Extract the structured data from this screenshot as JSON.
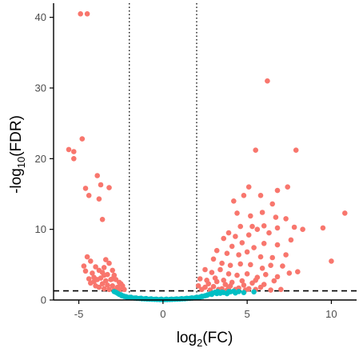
{
  "chart_data": {
    "type": "scatter",
    "title": "",
    "xlabel": {
      "base": "log",
      "sub": "2",
      "rest": "(FC)"
    },
    "ylabel": {
      "base": "-log",
      "sub": "10",
      "rest": "(FDR)"
    },
    "xlim": [
      -6.5,
      11.5
    ],
    "ylim": [
      0,
      42
    ],
    "x_ticks": [
      -5,
      0,
      5,
      10
    ],
    "y_ticks": [
      0,
      10,
      20,
      30,
      40
    ],
    "x_tick_labels": [
      "-5",
      "0",
      "5",
      "10"
    ],
    "y_tick_labels": [
      "0",
      "10",
      "20",
      "30",
      "40"
    ],
    "grid": false,
    "legend": "none",
    "reference_lines": {
      "vertical": [
        -2,
        2
      ],
      "vertical_style": "dotted",
      "horizontal": [
        1.3
      ],
      "horizontal_style": "dashed"
    },
    "colors": {
      "significant": "#F8766D",
      "not_significant": "#00BFC4",
      "axis": "#000000",
      "tick_text": "#4d4d4d"
    },
    "series": [
      {
        "color_key": "significant",
        "points": [
          [
            -4.9,
            40.5
          ],
          [
            -4.5,
            40.5
          ],
          [
            -5.6,
            21.3
          ],
          [
            -5.3,
            20.0
          ],
          [
            -5.3,
            21.0
          ],
          [
            -4.8,
            22.8
          ],
          [
            -4.6,
            15.8
          ],
          [
            -4.4,
            14.8
          ],
          [
            -3.9,
            17.6
          ],
          [
            -3.7,
            16.3
          ],
          [
            -3.2,
            15.9
          ],
          [
            -3.8,
            14.3
          ],
          [
            -3.6,
            11.4
          ],
          [
            -4.5,
            6.1
          ],
          [
            -4.3,
            5.5
          ],
          [
            -4.7,
            4.8
          ],
          [
            -4.0,
            4.7
          ],
          [
            -3.5,
            4.6
          ],
          [
            -3.4,
            5.7
          ],
          [
            -3.2,
            5.2
          ],
          [
            -3.0,
            4.2
          ],
          [
            -4.6,
            4.1
          ],
          [
            -4.2,
            3.8
          ],
          [
            -3.8,
            4.2
          ],
          [
            -3.6,
            3.9
          ],
          [
            -3.5,
            3.5
          ],
          [
            -3.3,
            3.6
          ],
          [
            -2.9,
            3.5
          ],
          [
            -4.4,
            3.0
          ],
          [
            -4.1,
            3.2
          ],
          [
            -3.9,
            2.9
          ],
          [
            -3.7,
            3.1
          ],
          [
            -3.4,
            2.7
          ],
          [
            -3.1,
            2.9
          ],
          [
            -2.8,
            2.9
          ],
          [
            -2.5,
            2.3
          ],
          [
            -4.3,
            2.4
          ],
          [
            -4.0,
            2.0
          ],
          [
            -3.6,
            2.3
          ],
          [
            -3.3,
            2.1
          ],
          [
            -3.0,
            2.0
          ],
          [
            -2.7,
            1.8
          ],
          [
            -2.4,
            1.7
          ],
          [
            -3.5,
            1.6
          ],
          [
            -3.2,
            1.5
          ],
          [
            -2.9,
            1.4
          ],
          [
            -2.6,
            1.4
          ],
          [
            -2.3,
            1.5
          ],
          [
            -3.8,
            1.8
          ],
          [
            -4.1,
            2.6
          ],
          [
            -3.0,
            3.0
          ],
          [
            -2.6,
            2.5
          ],
          [
            -2.4,
            2.0
          ],
          [
            6.2,
            31.0
          ],
          [
            5.5,
            21.2
          ],
          [
            7.9,
            21.2
          ],
          [
            5.1,
            16.0
          ],
          [
            6.8,
            15.5
          ],
          [
            7.4,
            16.0
          ],
          [
            4.2,
            14.0
          ],
          [
            4.8,
            14.8
          ],
          [
            5.8,
            14.8
          ],
          [
            6.5,
            13.6
          ],
          [
            4.4,
            12.3
          ],
          [
            5.2,
            11.9
          ],
          [
            5.9,
            12.4
          ],
          [
            6.7,
            11.7
          ],
          [
            4.6,
            10.4
          ],
          [
            5.3,
            10.4
          ],
          [
            6.0,
            10.5
          ],
          [
            7.3,
            11.5
          ],
          [
            3.9,
            9.5
          ],
          [
            4.3,
            9.0
          ],
          [
            5.1,
            9.2
          ],
          [
            5.6,
            10.0
          ],
          [
            6.3,
            9.5
          ],
          [
            6.8,
            10.2
          ],
          [
            7.8,
            10.3
          ],
          [
            8.3,
            10.0
          ],
          [
            9.5,
            10.2
          ],
          [
            10.8,
            12.3
          ],
          [
            3.6,
            8.7
          ],
          [
            4.1,
            7.6
          ],
          [
            4.7,
            8.1
          ],
          [
            5.4,
            7.4
          ],
          [
            6.0,
            8.0
          ],
          [
            6.8,
            7.8
          ],
          [
            7.6,
            8.5
          ],
          [
            3.2,
            7.0
          ],
          [
            3.8,
            6.6
          ],
          [
            4.5,
            6.4
          ],
          [
            5.0,
            6.8
          ],
          [
            5.8,
            6.1
          ],
          [
            6.5,
            6.0
          ],
          [
            7.3,
            6.4
          ],
          [
            10.0,
            5.5
          ],
          [
            3.0,
            5.8
          ],
          [
            3.5,
            5.2
          ],
          [
            4.0,
            4.9
          ],
          [
            4.6,
            5.1
          ],
          [
            5.2,
            5.0
          ],
          [
            5.9,
            4.5
          ],
          [
            6.4,
            4.9
          ],
          [
            7.1,
            4.8
          ],
          [
            8.0,
            4.0
          ],
          [
            2.5,
            4.3
          ],
          [
            2.9,
            3.9
          ],
          [
            3.4,
            4.3
          ],
          [
            3.9,
            3.7
          ],
          [
            4.4,
            3.5
          ],
          [
            5.0,
            3.7
          ],
          [
            5.6,
            3.2
          ],
          [
            6.1,
            3.6
          ],
          [
            6.8,
            3.3
          ],
          [
            2.2,
            3.0
          ],
          [
            2.6,
            2.8
          ],
          [
            3.1,
            3.1
          ],
          [
            3.6,
            2.8
          ],
          [
            4.1,
            2.5
          ],
          [
            4.7,
            2.7
          ],
          [
            5.3,
            2.4
          ],
          [
            6.0,
            2.2
          ],
          [
            2.1,
            2.0
          ],
          [
            2.5,
            1.8
          ],
          [
            3.0,
            1.9
          ],
          [
            3.5,
            1.6
          ],
          [
            4.0,
            2.0
          ],
          [
            4.5,
            1.7
          ],
          [
            5.1,
            1.6
          ],
          [
            5.8,
            1.8
          ],
          [
            7.0,
            1.5
          ],
          [
            2.3,
            1.5
          ],
          [
            2.8,
            1.4
          ],
          [
            3.3,
            1.5
          ],
          [
            3.8,
            1.4
          ],
          [
            4.3,
            1.5
          ],
          [
            4.9,
            1.4
          ],
          [
            5.5,
            1.5
          ],
          [
            6.4,
            1.4
          ],
          [
            2.7,
            2.3
          ],
          [
            3.2,
            2.6
          ],
          [
            3.7,
            2.2
          ],
          [
            4.8,
            2.1
          ],
          [
            5.5,
            2.8
          ],
          [
            6.6,
            2.7
          ],
          [
            7.5,
            3.8
          ],
          [
            3.9,
            1.7
          ]
        ]
      },
      {
        "color_key": "not_significant",
        "points": [
          [
            -2.8,
            1.1
          ],
          [
            -2.6,
            0.8
          ],
          [
            -2.45,
            0.6
          ],
          [
            -2.3,
            0.5
          ],
          [
            -2.15,
            0.42
          ],
          [
            -2.0,
            0.36
          ],
          [
            -1.85,
            0.31
          ],
          [
            -1.7,
            0.27
          ],
          [
            -1.55,
            0.24
          ],
          [
            -1.4,
            0.21
          ],
          [
            -1.25,
            0.18
          ],
          [
            -1.1,
            0.16
          ],
          [
            -0.95,
            0.14
          ],
          [
            -0.8,
            0.12
          ],
          [
            -0.65,
            0.1
          ],
          [
            -0.5,
            0.09
          ],
          [
            -0.35,
            0.08
          ],
          [
            -0.2,
            0.07
          ],
          [
            -0.05,
            0.06
          ],
          [
            0.1,
            0.06
          ],
          [
            0.25,
            0.07
          ],
          [
            0.4,
            0.08
          ],
          [
            0.55,
            0.09
          ],
          [
            0.7,
            0.1
          ],
          [
            0.85,
            0.12
          ],
          [
            1.0,
            0.14
          ],
          [
            1.15,
            0.16
          ],
          [
            1.3,
            0.18
          ],
          [
            1.45,
            0.21
          ],
          [
            1.6,
            0.24
          ],
          [
            1.75,
            0.27
          ],
          [
            1.9,
            0.31
          ],
          [
            2.05,
            0.36
          ],
          [
            2.2,
            0.42
          ],
          [
            2.35,
            0.5
          ],
          [
            2.5,
            0.6
          ],
          [
            2.65,
            0.72
          ],
          [
            2.8,
            0.85
          ],
          [
            2.95,
            0.98
          ],
          [
            3.1,
            1.1
          ],
          [
            3.25,
            1.2
          ],
          [
            3.4,
            0.95
          ],
          [
            3.6,
            1.05
          ],
          [
            3.8,
            0.9
          ],
          [
            4.0,
            1.15
          ],
          [
            4.3,
            1.0
          ],
          [
            4.5,
            1.2
          ],
          [
            4.8,
            1.05
          ],
          [
            5.4,
            1.15
          ],
          [
            -2.9,
            1.2
          ],
          [
            -2.7,
            0.95
          ],
          [
            -2.5,
            0.75
          ],
          [
            -2.35,
            0.58
          ],
          [
            -2.2,
            0.48
          ],
          [
            -1.9,
            0.38
          ],
          [
            -1.6,
            0.3
          ],
          [
            -1.3,
            0.25
          ],
          [
            -1.0,
            0.2
          ],
          [
            -0.7,
            0.16
          ],
          [
            -0.4,
            0.13
          ],
          [
            -0.1,
            0.12
          ],
          [
            0.2,
            0.12
          ],
          [
            0.5,
            0.13
          ],
          [
            0.8,
            0.15
          ],
          [
            1.1,
            0.19
          ],
          [
            1.4,
            0.24
          ],
          [
            1.7,
            0.3
          ],
          [
            2.0,
            0.4
          ],
          [
            2.3,
            0.52
          ],
          [
            2.6,
            0.66
          ],
          [
            2.9,
            0.8
          ],
          [
            3.2,
            0.92
          ],
          [
            3.5,
            1.12
          ],
          [
            3.9,
            1.18
          ],
          [
            4.2,
            1.25
          ]
        ]
      }
    ]
  }
}
